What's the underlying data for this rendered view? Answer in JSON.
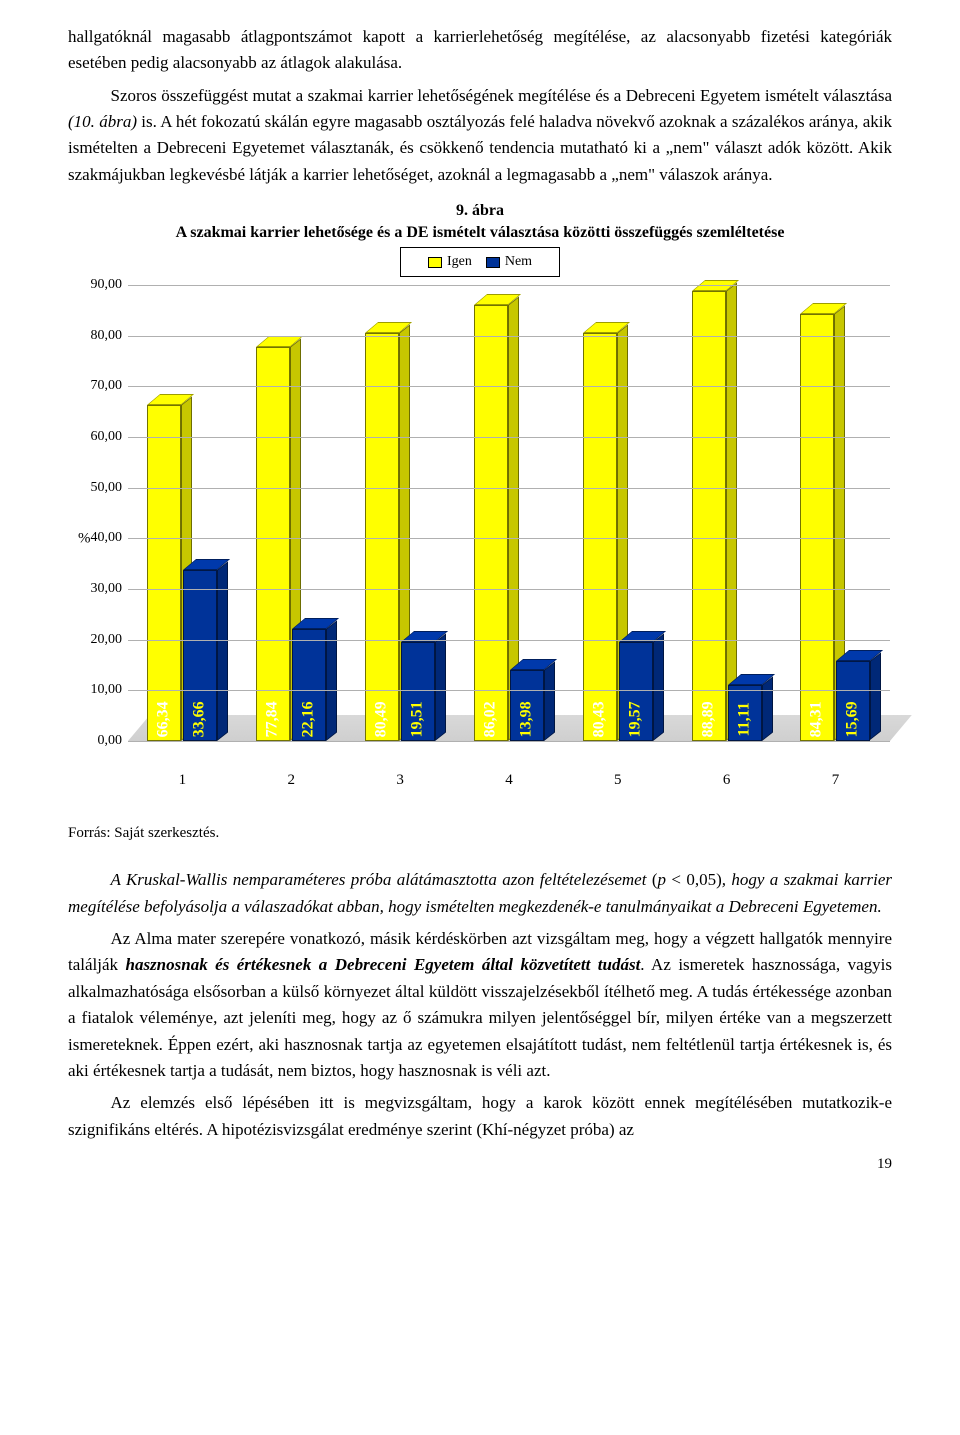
{
  "paragraphs": {
    "p1": "hallgatóknál magasabb átlagpontszámot kapott a karrierlehetőség megítélése, az alacsonyabb fizetési kategóriák esetében pedig alacsonyabb az átlagok alakulása.",
    "p2a": "Szoros összefüggést mutat a szakmai karrier lehetőségének megítélése és a Debreceni Egyetem ismételt választása ",
    "p2b": "(10. ábra)",
    "p2c": " is. A hét fokozatú skálán egyre magasabb osztályozás felé haladva növekvő azoknak a százalékos aránya, akik ismételten a Debreceni Egyetemet választanák, és csökkenő tendencia mutatható ki a „nem\" választ adók között. Akik szakmájukban legkevésbé látják a karrier lehetőséget, azoknál a legmagasabb a „nem\" válaszok aránya."
  },
  "chart": {
    "titleNum": "9. ábra",
    "titleText": "A szakmai karrier lehetősége és a DE ismételt választása közötti összefüggés szemléltetése",
    "legend": {
      "igen": "Igen",
      "nem": "Nem"
    },
    "colors": {
      "igen": "#ffff00",
      "nem": "#003399",
      "grid": "#b0b0b0",
      "igenLabel": "#ffffff",
      "nemLabel": "#ffff00",
      "plotBg": "#ffffff"
    },
    "ylabel": "%",
    "ymin": 0,
    "ymax": 90,
    "ytickStep": 10,
    "categories": [
      "1",
      "2",
      "3",
      "4",
      "5",
      "6",
      "7"
    ],
    "igenValues": [
      66.34,
      77.84,
      80.49,
      86.02,
      80.43,
      88.89,
      84.31
    ],
    "nemValues": [
      33.66,
      22.16,
      19.51,
      13.98,
      19.57,
      11.11,
      15.69
    ],
    "igenLabels": [
      "66,34",
      "77,84",
      "80,49",
      "86,02",
      "80,43",
      "88,89",
      "84,31"
    ],
    "nemLabels": [
      "33,66",
      "22,16",
      "19,51",
      "13,98",
      "19,57",
      "11,11",
      "15,69"
    ],
    "barWidthPx": 34,
    "labelFontSize": 16
  },
  "source": "Forrás: Saját szerkesztés.",
  "body2": {
    "p3a": "A Kruskal-Wallis nemparaméteres próba alátámasztotta azon feltételezésemet",
    "p3b": " (p < 0,05)",
    "p3c": ", hogy a szakmai karrier megítélése befolyásolja a válaszadókat abban, hogy ismételten megkezdenék-e tanulmányaikat a Debreceni Egyetemen.",
    "p4a": "Az Alma mater szerepére vonatkozó, másik kérdéskörben azt vizsgáltam meg, hogy a végzett hallgatók mennyire találják ",
    "p4b": "hasznosnak és értékesnek a Debreceni Egyetem által közvetített tudást",
    "p4c": ". Az ismeretek hasznossága, vagyis alkalmazhatósága elsősorban a külső környezet által küldött visszajelzésekből ítélhető meg. A tudás értékessége azonban a fiatalok véleménye, azt jeleníti meg, hogy az ő számukra milyen jelentőséggel bír, milyen értéke van a megszerzett ismereteknek. Éppen ezért, aki hasznosnak tartja az egyetemen elsajátított tudást, nem feltétlenül tartja értékesnek is, és aki értékesnek tartja a tudását, nem biztos, hogy hasznosnak is véli azt.",
    "p5": "Az elemzés első lépésében itt is megvizsgáltam, hogy a karok között ennek megítélésében mutatkozik-e szignifikáns eltérés. A hipotézisvizsgálat eredménye szerint (Khí-négyzet próba) az"
  },
  "pageNumber": "19"
}
